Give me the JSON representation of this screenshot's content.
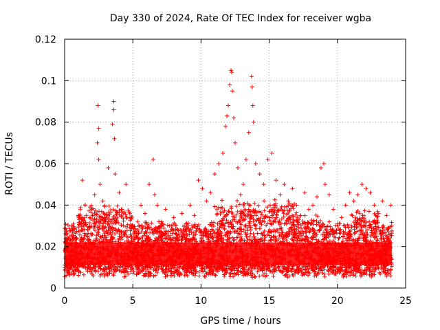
{
  "chart_data": {
    "type": "scatter",
    "title": "Day 330 of 2024, Rate Of TEC Index for receiver wgba",
    "xlabel": "GPS time / hours",
    "ylabel": "ROTI / TECUs",
    "xlim": [
      0,
      25
    ],
    "ylim": [
      0,
      0.12
    ],
    "xticks": [
      0,
      5,
      10,
      15,
      20,
      25
    ],
    "xtick_labels": [
      "0",
      "5",
      "10",
      "15",
      "20",
      "25"
    ],
    "yticks": [
      0,
      0.02,
      0.04,
      0.06,
      0.08,
      0.1,
      0.12
    ],
    "ytick_labels": [
      "0",
      "0.02",
      "0.04",
      "0.06",
      "0.08",
      "0.1",
      "0.12"
    ],
    "grid": true,
    "marker": "+",
    "series_color": "#ff0000",
    "series": [
      {
        "name": "ROTI",
        "x": [
          0.1,
          0.3,
          0.5,
          0.8,
          1.0,
          1.3,
          1.5,
          1.7,
          2.0,
          2.2,
          2.4,
          2.45,
          2.5,
          2.5,
          2.6,
          2.8,
          3.0,
          3.2,
          3.5,
          3.6,
          3.6,
          3.65,
          3.7,
          4.0,
          4.2,
          4.5,
          4.8,
          5.0,
          5.3,
          5.6,
          5.9,
          6.2,
          6.5,
          6.6,
          6.8,
          7.1,
          7.4,
          7.7,
          8.0,
          8.3,
          8.6,
          8.9,
          9.2,
          9.5,
          9.8,
          10.1,
          10.4,
          10.7,
          11.0,
          11.3,
          11.6,
          11.8,
          11.9,
          12.0,
          12.1,
          12.2,
          12.25,
          12.3,
          12.4,
          12.5,
          12.7,
          12.9,
          13.1,
          13.3,
          13.5,
          13.7,
          13.75,
          13.8,
          13.85,
          14.0,
          14.3,
          14.6,
          14.9,
          15.2,
          15.5,
          15.8,
          16.1,
          16.4,
          16.7,
          17.0,
          17.3,
          17.6,
          17.9,
          18.2,
          18.5,
          18.8,
          19.0,
          19.1,
          19.4,
          19.7,
          20.0,
          20.3,
          20.6,
          20.9,
          21.2,
          21.5,
          21.8,
          22.1,
          22.4,
          22.7,
          23.0,
          23.3,
          23.6,
          23.9
        ],
        "y": [
          0.018,
          0.024,
          0.03,
          0.022,
          0.035,
          0.052,
          0.04,
          0.028,
          0.038,
          0.045,
          0.07,
          0.088,
          0.077,
          0.062,
          0.05,
          0.042,
          0.032,
          0.058,
          0.079,
          0.09,
          0.086,
          0.072,
          0.055,
          0.046,
          0.038,
          0.05,
          0.034,
          0.03,
          0.028,
          0.04,
          0.036,
          0.05,
          0.062,
          0.045,
          0.04,
          0.032,
          0.038,
          0.03,
          0.034,
          0.028,
          0.036,
          0.031,
          0.04,
          0.035,
          0.052,
          0.048,
          0.042,
          0.046,
          0.055,
          0.06,
          0.065,
          0.078,
          0.083,
          0.088,
          0.098,
          0.105,
          0.104,
          0.095,
          0.082,
          0.07,
          0.058,
          0.045,
          0.05,
          0.062,
          0.075,
          0.102,
          0.097,
          0.088,
          0.08,
          0.06,
          0.055,
          0.05,
          0.062,
          0.065,
          0.052,
          0.045,
          0.05,
          0.042,
          0.048,
          0.04,
          0.035,
          0.046,
          0.038,
          0.04,
          0.044,
          0.058,
          0.06,
          0.05,
          0.045,
          0.038,
          0.03,
          0.034,
          0.04,
          0.046,
          0.042,
          0.045,
          0.05,
          0.048,
          0.046,
          0.04,
          0.036,
          0.042,
          0.035,
          0.04
        ]
      }
    ]
  }
}
